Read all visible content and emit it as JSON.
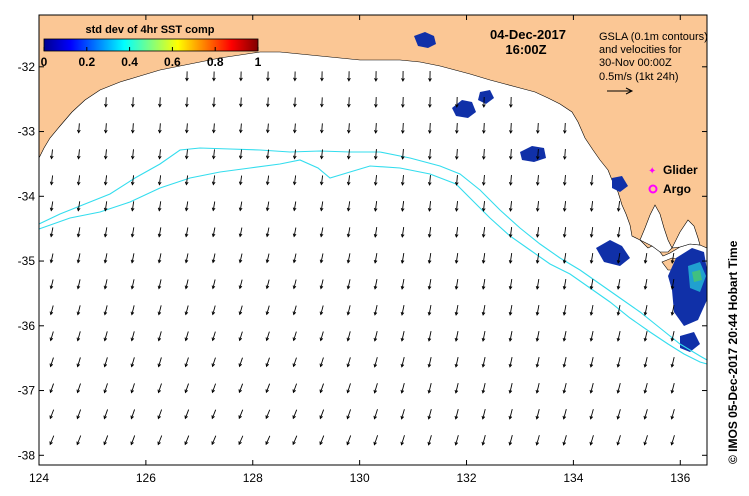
{
  "colorbar": {
    "title": "std dev of 4hr SST comp",
    "ticks": [
      "0",
      "0.2",
      "0.4",
      "0.6",
      "0.8",
      "1"
    ],
    "tick_values": [
      0,
      0.2,
      0.4,
      0.6,
      0.8,
      1
    ]
  },
  "header": {
    "date": "04-Dec-2017",
    "time": "16:00Z"
  },
  "info": {
    "line1": "GSLA (0.1m contours)",
    "line2": "and velocities for",
    "line3": "30-Nov 00:00Z",
    "line4": "0.5m/s (1kt 24h)"
  },
  "legend": {
    "glider": "Glider",
    "argo": "Argo"
  },
  "credit": "©  IMOS 05-Dec-2017 20:44 Hobart Time",
  "axes": {
    "x_ticks": [
      "124",
      "126",
      "128",
      "130",
      "132",
      "134",
      "136"
    ],
    "x_values": [
      124,
      126,
      128,
      130,
      132,
      134,
      136
    ],
    "y_ticks": [
      "-32",
      "-33",
      "-34",
      "-35",
      "-36",
      "-37",
      "-38"
    ],
    "y_values": [
      -32,
      -33,
      -34,
      -35,
      -36,
      -37,
      -38
    ],
    "lon_range": [
      124,
      136.5
    ],
    "lat_range": [
      -38.15,
      -31.2
    ]
  },
  "colors": {
    "land": "#FBC795",
    "ocean": "#FFFFFF",
    "contour": "#33DDEE",
    "arrow": "#000000",
    "sst_low": "#1030A8",
    "glider": "#FF00FF",
    "argo": "#FF00FF"
  }
}
